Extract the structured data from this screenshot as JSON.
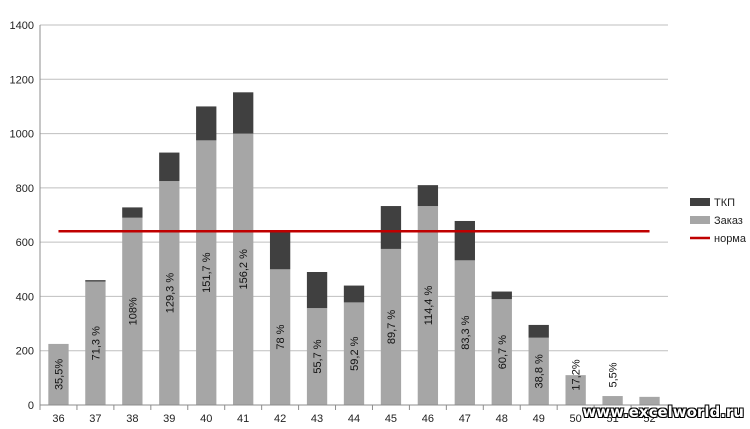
{
  "chart_data": {
    "type": "bar",
    "stacked": true,
    "categories": [
      "36",
      "37",
      "38",
      "39",
      "40",
      "41",
      "42",
      "43",
      "44",
      "45",
      "46",
      "47",
      "48",
      "49",
      "50",
      "51",
      "52"
    ],
    "series": [
      {
        "name": "Заказ",
        "color": "#a6a6a6",
        "values": [
          225,
          455,
          690,
          825,
          975,
          1000,
          500,
          357,
          378,
          575,
          733,
          533,
          390,
          248,
          110,
          33,
          30
        ]
      },
      {
        "name": "ТКП",
        "color": "#404040",
        "values": [
          0,
          5,
          38,
          105,
          125,
          152,
          140,
          133,
          62,
          158,
          77,
          145,
          28,
          47,
          0,
          0,
          0
        ]
      }
    ],
    "line": {
      "name": "норма",
      "color": "#c00000",
      "value": 640
    },
    "data_labels": [
      "35,5%",
      "71,3 %",
      "108%",
      "129,3 %",
      "151,7 %",
      "156,2 %",
      "78 %",
      "55,7 %",
      "59,2 %",
      "89,7 %",
      "114,4 %",
      "83,3 %",
      "60,7 %",
      "38,8 %",
      "17,2%",
      "5,5%",
      ""
    ],
    "y_ticks": [
      0,
      200,
      400,
      600,
      800,
      1000,
      1200,
      1400
    ],
    "ylim": [
      0,
      1400
    ],
    "grid": true,
    "legend_position": "right"
  },
  "watermark": "www.excelworld.ru"
}
